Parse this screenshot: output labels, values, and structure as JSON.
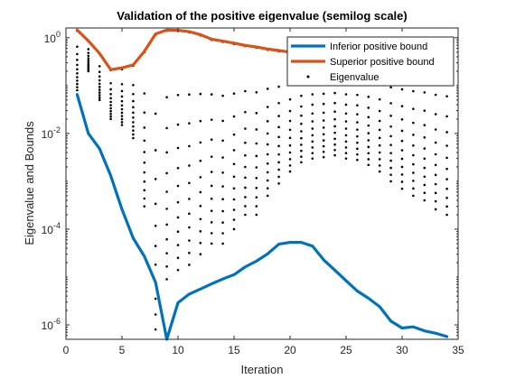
{
  "chart_data": {
    "type": "line",
    "title": "Validation of the positive eigenvalue (semilog scale)",
    "xlabel": "Iteration",
    "ylabel": "Eigenvalue and Bounds",
    "xlim": [
      0,
      35
    ],
    "ylim": [
      5e-07,
      1.6
    ],
    "yscale": "log",
    "grid": false,
    "legend_position": "top-right",
    "x_ticks": [
      0,
      5,
      10,
      15,
      20,
      25,
      30,
      35
    ],
    "x_tick_labels": [
      "0",
      "5",
      "10",
      "15",
      "20",
      "25",
      "30",
      "35"
    ],
    "y_ticks": [
      1e-06,
      0.0001,
      0.01,
      1
    ],
    "y_tick_labels": [
      {
        "base": "10",
        "exp": "-6"
      },
      {
        "base": "10",
        "exp": "-4"
      },
      {
        "base": "10",
        "exp": "-2"
      },
      {
        "base": "10",
        "exp": "0"
      }
    ],
    "series": [
      {
        "name": "Inferior positive bound",
        "kind": "line",
        "color": "#0072BD",
        "x": [
          1,
          2,
          3,
          4,
          5,
          6,
          7,
          8,
          9,
          10,
          11,
          12,
          13,
          14,
          15,
          16,
          17,
          18,
          19,
          20,
          21,
          22,
          23,
          24,
          25,
          26,
          27,
          28,
          29,
          30,
          31,
          32,
          33,
          34
        ],
        "y": [
          0.065,
          0.01,
          0.0048,
          0.0013,
          0.00026,
          6.5e-05,
          2.7e-05,
          7.7e-06,
          5e-07,
          2.9e-06,
          4.4e-06,
          5.6e-06,
          7.2e-06,
          9.1e-06,
          1.12e-05,
          1.63e-05,
          2.15e-05,
          3.05e-05,
          4.86e-05,
          5.3e-05,
          5.3e-05,
          4.44e-05,
          2.29e-05,
          1.39e-05,
          8.4e-06,
          5.1e-06,
          3.6e-06,
          2.4e-06,
          1.2e-06,
          8.6e-07,
          9.1e-07,
          7.5e-07,
          6.7e-07,
          5.7e-07
        ]
      },
      {
        "name": "Superior positive bound",
        "kind": "line",
        "color": "#D95319",
        "x": [
          1,
          2,
          3,
          4,
          5,
          6,
          7,
          8,
          9,
          10,
          11,
          12,
          13,
          14,
          15,
          16,
          17,
          18,
          19,
          20,
          21,
          22,
          23,
          24,
          25,
          26,
          27,
          28,
          29,
          30,
          31,
          32,
          33,
          34
        ],
        "y": [
          1.45,
          0.86,
          0.47,
          0.215,
          0.235,
          0.27,
          0.52,
          1.2,
          1.45,
          1.43,
          1.34,
          1.16,
          0.93,
          0.85,
          0.77,
          0.69,
          0.64,
          0.58,
          0.54,
          0.5,
          0.5,
          0.5,
          0.5,
          0.5,
          0.5,
          0.5,
          0.5,
          0.5,
          0.5,
          0.5,
          0.5,
          0.5,
          0.5,
          0.5
        ]
      },
      {
        "name": "Eigenvalue",
        "kind": "scatter",
        "color": "#000000",
        "points_per_iteration": 12,
        "ranges": [
          {
            "x": 1,
            "min": 0.08,
            "max": 1.4
          },
          {
            "x": 2,
            "min": 0.2,
            "max": 0.85
          },
          {
            "x": 3,
            "min": 0.05,
            "max": 0.46
          },
          {
            "x": 4,
            "min": 0.02,
            "max": 0.21
          },
          {
            "x": 5,
            "min": 0.015,
            "max": 0.22
          },
          {
            "x": 6,
            "min": 0.008,
            "max": 0.26
          },
          {
            "x": 7,
            "min": 0.0003,
            "max": 0.5
          },
          {
            "x": 8,
            "min": 8e-07,
            "max": 1.15
          },
          {
            "x": 9,
            "min": 9e-06,
            "max": 1.4
          },
          {
            "x": 10,
            "min": 1.4e-05,
            "max": 1.38
          },
          {
            "x": 11,
            "min": 1.8e-05,
            "max": 1.3
          },
          {
            "x": 12,
            "min": 3e-05,
            "max": 1.12
          },
          {
            "x": 13,
            "min": 5e-05,
            "max": 0.9
          },
          {
            "x": 14,
            "min": 5e-05,
            "max": 0.82
          },
          {
            "x": 15,
            "min": 0.0001,
            "max": 0.74
          },
          {
            "x": 16,
            "min": 0.0002,
            "max": 0.67
          },
          {
            "x": 17,
            "min": 0.0002,
            "max": 0.62
          },
          {
            "x": 18,
            "min": 0.0005,
            "max": 0.56
          },
          {
            "x": 19,
            "min": 0.0009,
            "max": 0.52
          },
          {
            "x": 20,
            "min": 0.0016,
            "max": 0.48
          },
          {
            "x": 21,
            "min": 0.0025,
            "max": 0.48
          },
          {
            "x": 22,
            "min": 0.003,
            "max": 0.48
          },
          {
            "x": 23,
            "min": 0.0032,
            "max": 0.48
          },
          {
            "x": 24,
            "min": 0.0035,
            "max": 0.48
          },
          {
            "x": 25,
            "min": 0.003,
            "max": 0.48
          },
          {
            "x": 26,
            "min": 0.0028,
            "max": 0.48
          },
          {
            "x": 27,
            "min": 0.0022,
            "max": 0.48
          },
          {
            "x": 28,
            "min": 0.0016,
            "max": 0.48
          },
          {
            "x": 29,
            "min": 0.001,
            "max": 0.48
          },
          {
            "x": 30,
            "min": 0.0007,
            "max": 0.48
          },
          {
            "x": 31,
            "min": 0.0005,
            "max": 0.48
          },
          {
            "x": 32,
            "min": 0.0004,
            "max": 0.48
          },
          {
            "x": 33,
            "min": 0.00026,
            "max": 0.48
          },
          {
            "x": 34,
            "min": 0.0002,
            "max": 0.48
          }
        ]
      }
    ]
  }
}
